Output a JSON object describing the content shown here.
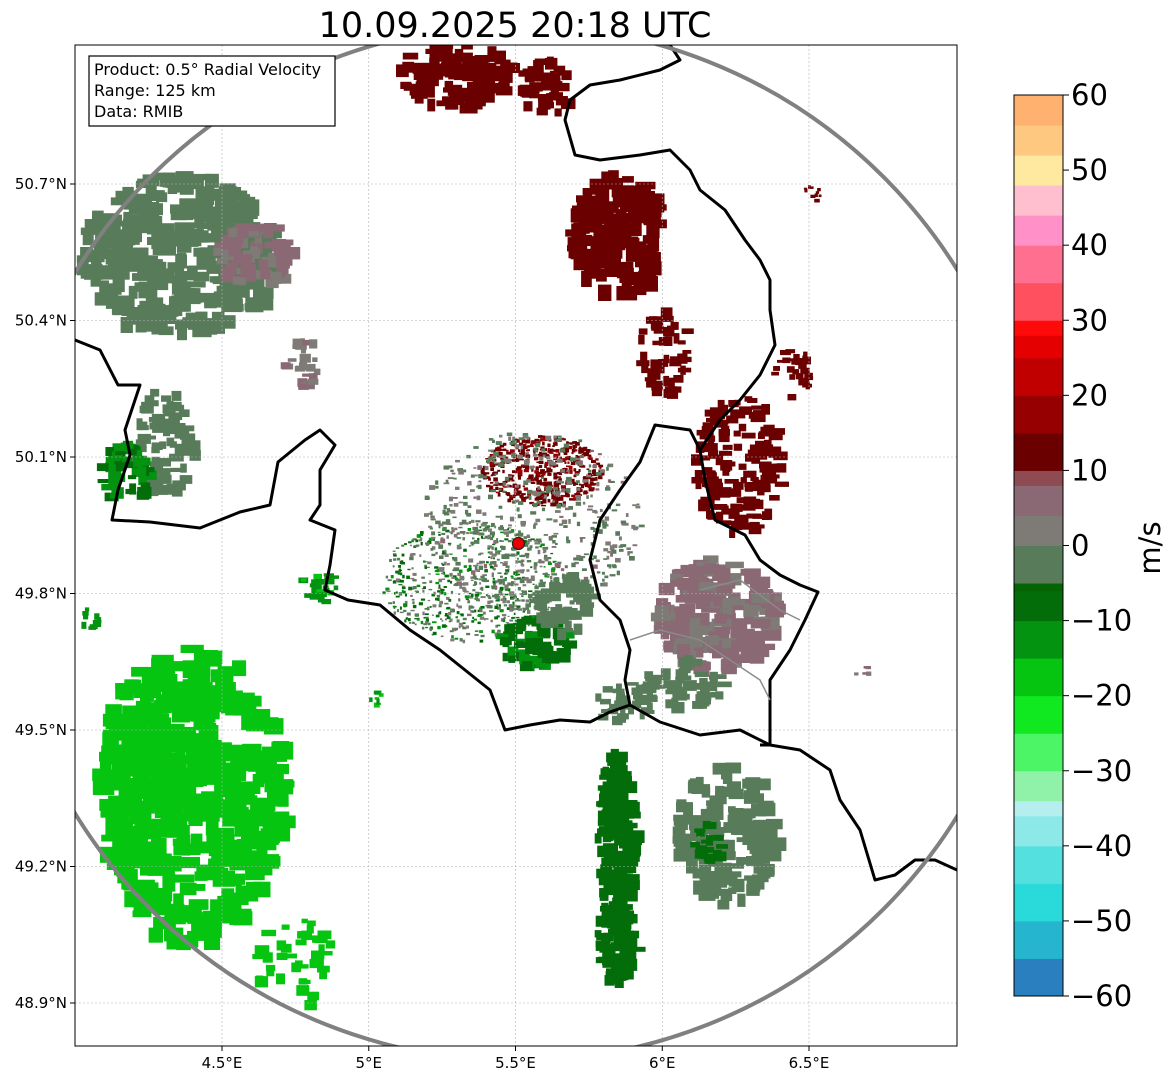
{
  "title": "10.09.2025 20:18 UTC",
  "info_box": {
    "product": "Product: 0.5° Radial Velocity",
    "range": "Range: 125 km",
    "data": "Data: RMIB"
  },
  "axes": {
    "lat_ticks": [
      "50.7°N",
      "50.4°N",
      "50.1°N",
      "49.8°N",
      "49.5°N",
      "49.2°N",
      "48.9°N"
    ],
    "lon_ticks": [
      "4.5°E",
      "5°E",
      "5.5°E",
      "6°E",
      "6.5°E"
    ],
    "lat_values": [
      50.7,
      50.4,
      50.1,
      49.8,
      49.5,
      49.2,
      48.9
    ],
    "lon_values": [
      4.5,
      5.0,
      5.5,
      6.0,
      6.5
    ],
    "lon_range": [
      4.0,
      7.0
    ],
    "lat_range": [
      48.8,
      51.0
    ],
    "grid": true
  },
  "colorbar": {
    "unit_label": "m/s",
    "tick_labels": [
      "60",
      "50",
      "40",
      "30",
      "20",
      "10",
      "0",
      "−10",
      "−20",
      "−30",
      "−40",
      "−50",
      "−60"
    ],
    "vmin": -60,
    "vmax": 60,
    "color_stops": [
      {
        "v": -60,
        "c": "#2a7fbe"
      },
      {
        "v": -55,
        "c": "#25b5cf"
      },
      {
        "v": -50,
        "c": "#2ad9da"
      },
      {
        "v": -45,
        "c": "#55e0e0"
      },
      {
        "v": -40,
        "c": "#8de8e8"
      },
      {
        "v": -36,
        "c": "#b5eeee"
      },
      {
        "v": -34,
        "c": "#8ff2a8"
      },
      {
        "v": -30,
        "c": "#4cf565"
      },
      {
        "v": -25,
        "c": "#10e820"
      },
      {
        "v": -20,
        "c": "#05c510"
      },
      {
        "v": -15,
        "c": "#039310"
      },
      {
        "v": -10,
        "c": "#036d0a"
      },
      {
        "v": -6,
        "c": "#046404"
      },
      {
        "v": -5,
        "c": "#587c5a"
      },
      {
        "v": 0,
        "c": "#7e7a76"
      },
      {
        "v": 4,
        "c": "#8a6874"
      },
      {
        "v": 8,
        "c": "#8e4c52"
      },
      {
        "v": 10,
        "c": "#6a0000"
      },
      {
        "v": 15,
        "c": "#960000"
      },
      {
        "v": 20,
        "c": "#c00000"
      },
      {
        "v": 25,
        "c": "#e40000"
      },
      {
        "v": 28,
        "c": "#ff0a0a"
      },
      {
        "v": 30,
        "c": "#ff5060"
      },
      {
        "v": 35,
        "c": "#ff6f90"
      },
      {
        "v": 40,
        "c": "#ff90c8"
      },
      {
        "v": 44,
        "c": "#ffbfcf"
      },
      {
        "v": 48,
        "c": "#ffe8a0"
      },
      {
        "v": 52,
        "c": "#ffc880"
      },
      {
        "v": 56,
        "c": "#ffb270"
      },
      {
        "v": 60,
        "c": "#ff9a58"
      }
    ]
  },
  "radar_site": {
    "lon": 5.51,
    "lat": 49.91,
    "color": "#e60000"
  },
  "colors": {
    "range_ring": "#808080",
    "border": "#000000",
    "inner_border": "#8a8a8a",
    "grid": "#b0b0b0"
  }
}
